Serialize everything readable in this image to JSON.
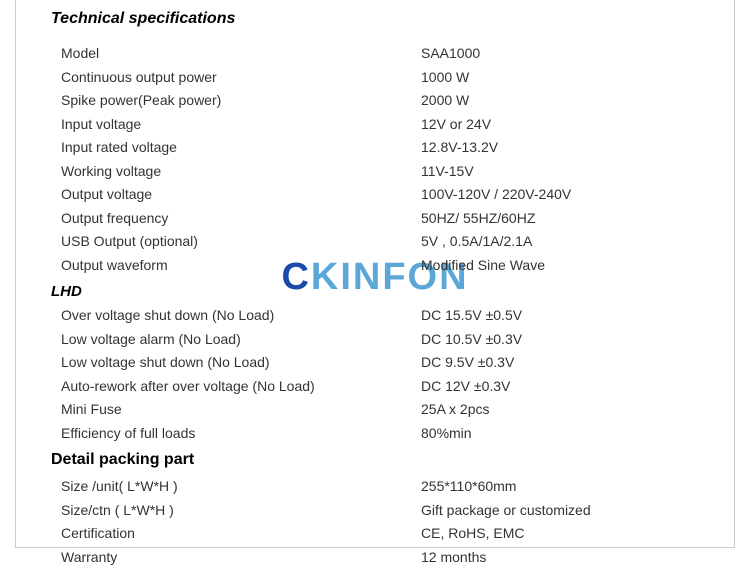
{
  "headings": {
    "tech": "Technical specifications",
    "lhd": "LHD",
    "detail": "Detail packing part"
  },
  "watermark": {
    "prefix": "C",
    "rest": "KINFON"
  },
  "tech_specs": [
    {
      "label": "Model",
      "value": "SAA1000"
    },
    {
      "label": "Continuous output power",
      "value": "1000 W"
    },
    {
      "label": "Spike power(Peak power)",
      "value": "2000 W"
    },
    {
      "label": "Input voltage",
      "value": "12V or 24V"
    },
    {
      "label": "Input rated voltage",
      "value": "12.8V-13.2V"
    },
    {
      "label": "Working voltage",
      "value": "11V-15V"
    },
    {
      "label": "Output voltage",
      "value": "100V-120V / 220V-240V"
    },
    {
      "label": "Output frequency",
      "value": "50HZ/ 55HZ/60HZ"
    },
    {
      "label": "USB Output (optional)",
      "value": "5V , 0.5A/1A/2.1A"
    },
    {
      "label": "Output waveform",
      "value": "Modified Sine Wave"
    }
  ],
  "lhd_specs": [
    {
      "label": "Over voltage shut down (No Load)",
      "value": "DC 15.5V ±0.5V"
    },
    {
      "label": "Low voltage alarm (No Load)",
      "value": "DC 10.5V ±0.3V"
    },
    {
      "label": "Low voltage shut down (No Load)",
      "value": "DC 9.5V ±0.3V"
    },
    {
      "label": "Auto-rework after over voltage (No Load)",
      "value": "DC 12V ±0.3V"
    },
    {
      "label": "Mini Fuse",
      "value": "25A x 2pcs"
    },
    {
      "label": "Efficiency of full loads",
      "value": "80%min"
    }
  ],
  "detail_specs": [
    {
      "label": "Size /unit( L*W*H )",
      "value": "255*110*60mm"
    },
    {
      "label": "Size/ctn ( L*W*H )",
      "value": "Gift package or customized"
    },
    {
      "label": "Certification",
      "value": "CE, RoHS, EMC"
    },
    {
      "label": "Warranty",
      "value": "12 months"
    }
  ]
}
